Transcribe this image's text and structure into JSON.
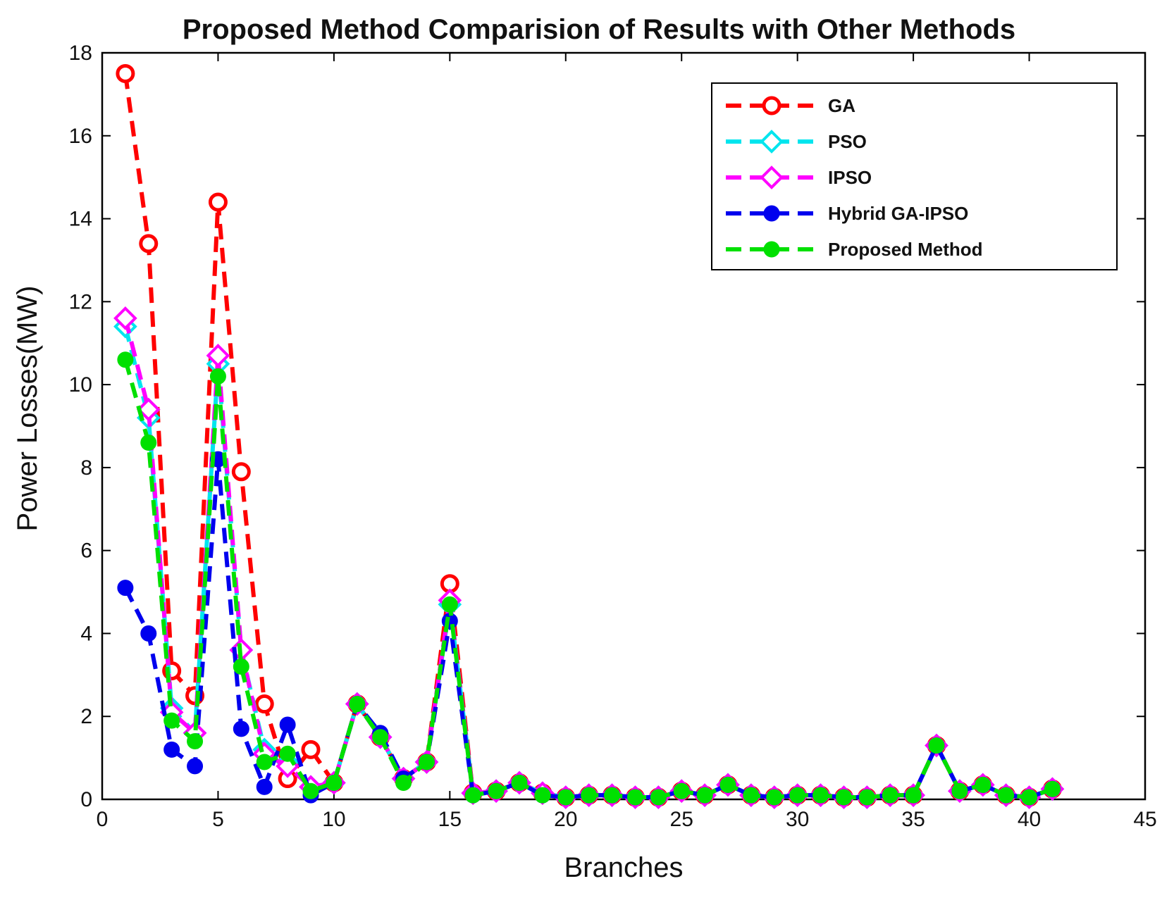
{
  "chart_data": {
    "type": "line",
    "title": "Proposed Method Comparision of Results with Other Methods",
    "xlabel": "Branches",
    "ylabel": "Power Losses(MW)",
    "xlim": [
      0,
      45
    ],
    "ylim": [
      0,
      18
    ],
    "xticks": [
      0,
      5,
      10,
      15,
      20,
      25,
      30,
      35,
      40,
      45
    ],
    "yticks": [
      0,
      2,
      4,
      6,
      8,
      10,
      12,
      14,
      16,
      18
    ],
    "legend_position": "top-right",
    "x": [
      1,
      2,
      3,
      4,
      5,
      6,
      7,
      8,
      9,
      10,
      11,
      12,
      13,
      14,
      15,
      16,
      17,
      18,
      19,
      20,
      21,
      22,
      23,
      24,
      25,
      26,
      27,
      28,
      29,
      30,
      31,
      32,
      33,
      34,
      35,
      36,
      37,
      38,
      39,
      40,
      41
    ],
    "series": [
      {
        "name": "GA",
        "color": "#ff0000",
        "marker": "circle-open",
        "values": [
          17.5,
          13.4,
          3.1,
          2.5,
          14.4,
          7.9,
          2.3,
          0.5,
          1.2,
          0.4,
          2.3,
          1.5,
          0.5,
          0.9,
          5.2,
          0.15,
          0.2,
          0.4,
          0.15,
          0.05,
          0.1,
          0.1,
          0.05,
          0.05,
          0.2,
          0.1,
          0.35,
          0.1,
          0.05,
          0.1,
          0.1,
          0.05,
          0.05,
          0.1,
          0.1,
          1.3,
          0.2,
          0.35,
          0.1,
          0.05,
          0.25
        ]
      },
      {
        "name": "PSO",
        "color": "#00e5ee",
        "marker": "diamond-open",
        "values": [
          11.4,
          9.2,
          2.2,
          1.6,
          10.5,
          3.6,
          1.2,
          0.9,
          0.3,
          0.4,
          2.3,
          1.5,
          0.5,
          0.9,
          4.7,
          0.15,
          0.2,
          0.4,
          0.15,
          0.05,
          0.1,
          0.1,
          0.05,
          0.05,
          0.2,
          0.1,
          0.35,
          0.1,
          0.05,
          0.1,
          0.1,
          0.05,
          0.05,
          0.1,
          0.1,
          1.3,
          0.2,
          0.35,
          0.1,
          0.05,
          0.25
        ]
      },
      {
        "name": "IPSO",
        "color": "#ff00ff",
        "marker": "diamond-open",
        "values": [
          11.6,
          9.4,
          2.1,
          1.6,
          10.7,
          3.6,
          1.1,
          0.8,
          0.3,
          0.4,
          2.3,
          1.5,
          0.5,
          0.9,
          4.8,
          0.15,
          0.2,
          0.4,
          0.15,
          0.05,
          0.1,
          0.1,
          0.05,
          0.05,
          0.2,
          0.1,
          0.35,
          0.1,
          0.05,
          0.1,
          0.1,
          0.05,
          0.05,
          0.1,
          0.1,
          1.3,
          0.2,
          0.35,
          0.1,
          0.05,
          0.25
        ]
      },
      {
        "name": "Hybrid GA-IPSO",
        "color": "#0000ee",
        "marker": "circle-filled",
        "values": [
          5.1,
          4.0,
          1.2,
          0.8,
          8.2,
          1.7,
          0.3,
          1.8,
          0.1,
          0.4,
          2.3,
          1.6,
          0.5,
          0.9,
          4.3,
          0.1,
          0.2,
          0.4,
          0.1,
          0.05,
          0.1,
          0.1,
          0.05,
          0.05,
          0.2,
          0.1,
          0.35,
          0.1,
          0.05,
          0.1,
          0.1,
          0.05,
          0.05,
          0.1,
          0.1,
          1.3,
          0.2,
          0.35,
          0.1,
          0.05,
          0.25
        ]
      },
      {
        "name": "Proposed Method",
        "color": "#00e000",
        "marker": "circle-filled",
        "values": [
          10.6,
          8.6,
          1.9,
          1.4,
          10.2,
          3.2,
          0.9,
          1.1,
          0.2,
          0.4,
          2.3,
          1.5,
          0.4,
          0.9,
          4.7,
          0.1,
          0.2,
          0.4,
          0.1,
          0.05,
          0.1,
          0.1,
          0.05,
          0.05,
          0.2,
          0.1,
          0.35,
          0.1,
          0.05,
          0.1,
          0.1,
          0.05,
          0.05,
          0.1,
          0.1,
          1.3,
          0.2,
          0.35,
          0.1,
          0.05,
          0.25
        ]
      }
    ]
  }
}
